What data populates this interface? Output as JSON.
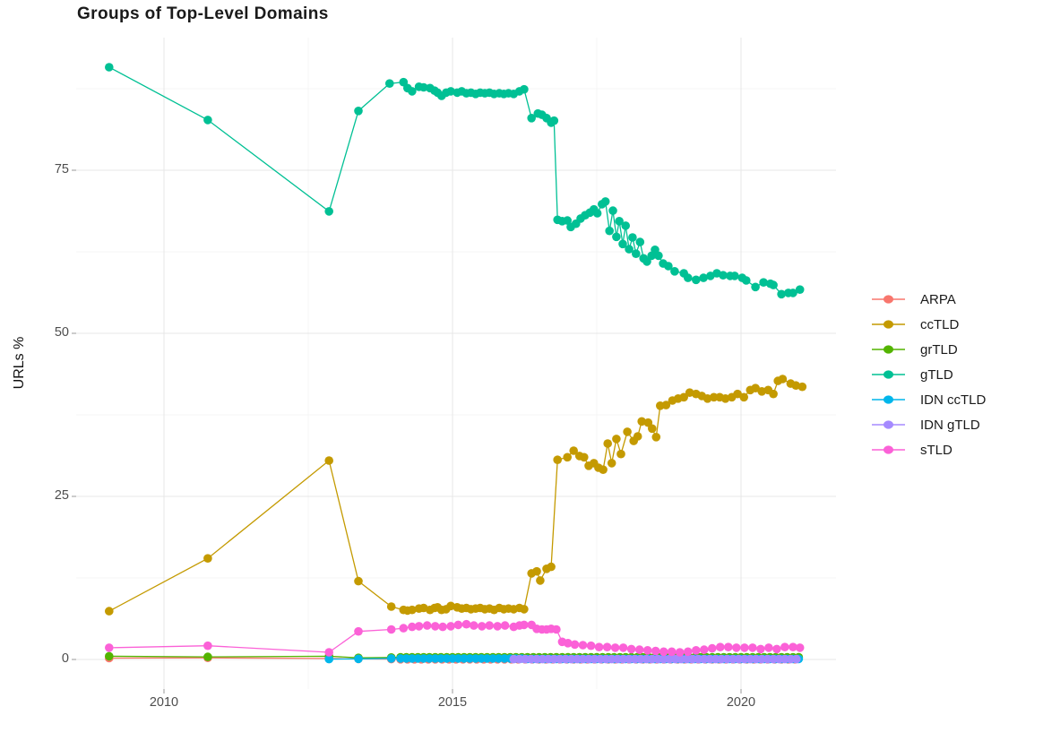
{
  "title": "Groups of Top-Level Domains",
  "axes": {
    "y_label": "URLs %",
    "x_ticks": [
      2010,
      2015,
      2020
    ],
    "y_ticks": [
      0,
      25,
      50,
      75
    ]
  },
  "chart_data": {
    "type": "line",
    "title": "Groups of Top-Level Domains",
    "xlabel": "",
    "ylabel": "URLs %",
    "xlim": [
      2008.5,
      2021.65
    ],
    "ylim": [
      -4.5,
      95.5
    ],
    "grid": true,
    "legend_position": "right",
    "x_major": [
      2010,
      2015,
      2020
    ],
    "x_minor": [
      2012.5,
      2017.5
    ],
    "y_major": [
      0,
      25,
      50,
      75
    ],
    "y_minor": [
      12.5,
      37.5,
      62.5,
      87.5
    ],
    "series": [
      {
        "name": "ARPA",
        "color": "#F8766D",
        "points": [
          [
            2009.05,
            0.2
          ],
          [
            2010.76,
            0.25
          ],
          [
            2012.86,
            0.15
          ],
          [
            2013.37,
            0.08
          ],
          [
            2013.94,
            0.05
          ]
        ],
        "runs": [
          {
            "from": 2014.1,
            "to": 2021.05,
            "step": 0.12,
            "value": 0.03
          }
        ]
      },
      {
        "name": "ccTLD",
        "color": "#C49A00",
        "points": [
          [
            2009.05,
            7.4
          ],
          [
            2010.76,
            15.5
          ],
          [
            2012.86,
            30.5
          ],
          [
            2013.37,
            12.0
          ],
          [
            2013.94,
            8.1
          ],
          [
            2014.15,
            7.6
          ],
          [
            2014.22,
            7.5
          ],
          [
            2014.3,
            7.6
          ],
          [
            2014.42,
            7.8
          ],
          [
            2014.5,
            7.9
          ],
          [
            2014.61,
            7.6
          ],
          [
            2014.69,
            7.9
          ],
          [
            2014.74,
            8.0
          ],
          [
            2014.81,
            7.6
          ],
          [
            2014.89,
            7.7
          ],
          [
            2014.97,
            8.2
          ],
          [
            2015.08,
            8.0
          ],
          [
            2015.16,
            7.8
          ],
          [
            2015.24,
            7.9
          ],
          [
            2015.32,
            7.7
          ],
          [
            2015.4,
            7.8
          ],
          [
            2015.48,
            7.9
          ],
          [
            2015.56,
            7.7
          ],
          [
            2015.64,
            7.8
          ],
          [
            2015.72,
            7.6
          ],
          [
            2015.81,
            7.9
          ],
          [
            2015.89,
            7.7
          ],
          [
            2015.97,
            7.8
          ],
          [
            2016.06,
            7.7
          ],
          [
            2016.16,
            7.9
          ],
          [
            2016.24,
            7.7
          ],
          [
            2016.37,
            13.2
          ],
          [
            2016.46,
            13.5
          ],
          [
            2016.52,
            12.1
          ],
          [
            2016.63,
            13.9
          ],
          [
            2016.71,
            14.2
          ],
          [
            2016.82,
            30.6
          ],
          [
            2016.99,
            31.0
          ],
          [
            2017.1,
            32.0
          ],
          [
            2017.2,
            31.2
          ],
          [
            2017.28,
            31.0
          ],
          [
            2017.36,
            29.7
          ],
          [
            2017.45,
            30.1
          ],
          [
            2017.53,
            29.4
          ],
          [
            2017.61,
            29.1
          ],
          [
            2017.69,
            33.1
          ],
          [
            2017.76,
            30.1
          ],
          [
            2017.84,
            33.8
          ],
          [
            2017.92,
            31.5
          ],
          [
            2018.03,
            34.9
          ],
          [
            2018.14,
            33.5
          ],
          [
            2018.21,
            34.2
          ],
          [
            2018.28,
            36.5
          ],
          [
            2018.39,
            36.3
          ],
          [
            2018.46,
            35.4
          ],
          [
            2018.53,
            34.1
          ],
          [
            2018.6,
            38.9
          ],
          [
            2018.7,
            39.0
          ],
          [
            2018.81,
            39.7
          ],
          [
            2018.91,
            40.0
          ],
          [
            2019.01,
            40.2
          ],
          [
            2019.11,
            40.9
          ],
          [
            2019.22,
            40.7
          ],
          [
            2019.32,
            40.4
          ],
          [
            2019.42,
            40.0
          ],
          [
            2019.53,
            40.2
          ],
          [
            2019.63,
            40.2
          ],
          [
            2019.73,
            40.0
          ],
          [
            2019.84,
            40.2
          ],
          [
            2019.94,
            40.7
          ],
          [
            2020.05,
            40.2
          ],
          [
            2020.16,
            41.3
          ],
          [
            2020.25,
            41.6
          ],
          [
            2020.36,
            41.1
          ],
          [
            2020.47,
            41.3
          ],
          [
            2020.56,
            40.7
          ],
          [
            2020.64,
            42.7
          ],
          [
            2020.72,
            43.0
          ],
          [
            2020.86,
            42.3
          ],
          [
            2020.95,
            42.0
          ],
          [
            2021.06,
            41.8
          ]
        ],
        "runs": []
      },
      {
        "name": "grTLD",
        "color": "#53B400",
        "points": [
          [
            2009.05,
            0.5
          ],
          [
            2010.76,
            0.4
          ],
          [
            2012.86,
            0.5
          ],
          [
            2013.37,
            0.25
          ],
          [
            2013.94,
            0.3
          ]
        ],
        "runs": [
          {
            "from": 2014.1,
            "to": 2021.05,
            "step": 0.1,
            "value": 0.35
          }
        ]
      },
      {
        "name": "gTLD",
        "color": "#00C094",
        "points": [
          [
            2009.05,
            90.8
          ],
          [
            2010.76,
            82.7
          ],
          [
            2012.86,
            68.7
          ],
          [
            2013.37,
            84.1
          ],
          [
            2013.91,
            88.3
          ],
          [
            2014.15,
            88.5
          ],
          [
            2014.22,
            87.6
          ],
          [
            2014.3,
            87.1
          ],
          [
            2014.42,
            87.8
          ],
          [
            2014.5,
            87.7
          ],
          [
            2014.61,
            87.6
          ],
          [
            2014.69,
            87.2
          ],
          [
            2014.74,
            86.9
          ],
          [
            2014.81,
            86.4
          ],
          [
            2014.89,
            86.9
          ],
          [
            2014.97,
            87.1
          ],
          [
            2015.08,
            86.9
          ],
          [
            2015.16,
            87.1
          ],
          [
            2015.24,
            86.8
          ],
          [
            2015.32,
            86.9
          ],
          [
            2015.4,
            86.7
          ],
          [
            2015.48,
            86.9
          ],
          [
            2015.56,
            86.8
          ],
          [
            2015.64,
            86.9
          ],
          [
            2015.72,
            86.7
          ],
          [
            2015.81,
            86.8
          ],
          [
            2015.89,
            86.7
          ],
          [
            2015.97,
            86.8
          ],
          [
            2016.06,
            86.7
          ],
          [
            2016.16,
            87.1
          ],
          [
            2016.24,
            87.4
          ],
          [
            2016.37,
            83.0
          ],
          [
            2016.48,
            83.7
          ],
          [
            2016.55,
            83.5
          ],
          [
            2016.63,
            83.0
          ],
          [
            2016.71,
            82.3
          ],
          [
            2016.76,
            82.6
          ],
          [
            2016.82,
            67.4
          ],
          [
            2016.9,
            67.2
          ],
          [
            2016.99,
            67.3
          ],
          [
            2017.05,
            66.3
          ],
          [
            2017.14,
            66.8
          ],
          [
            2017.22,
            67.6
          ],
          [
            2017.3,
            68.1
          ],
          [
            2017.38,
            68.5
          ],
          [
            2017.45,
            69.0
          ],
          [
            2017.51,
            68.4
          ],
          [
            2017.59,
            69.8
          ],
          [
            2017.65,
            70.2
          ],
          [
            2017.72,
            65.7
          ],
          [
            2017.78,
            68.8
          ],
          [
            2017.84,
            64.8
          ],
          [
            2017.89,
            67.2
          ],
          [
            2017.95,
            63.7
          ],
          [
            2018.0,
            66.5
          ],
          [
            2018.06,
            62.9
          ],
          [
            2018.12,
            64.7
          ],
          [
            2018.18,
            62.2
          ],
          [
            2018.25,
            64.0
          ],
          [
            2018.31,
            61.5
          ],
          [
            2018.37,
            61.0
          ],
          [
            2018.45,
            61.9
          ],
          [
            2018.51,
            62.8
          ],
          [
            2018.57,
            61.9
          ],
          [
            2018.65,
            60.7
          ],
          [
            2018.74,
            60.3
          ],
          [
            2018.85,
            59.5
          ],
          [
            2019.01,
            59.2
          ],
          [
            2019.08,
            58.5
          ],
          [
            2019.22,
            58.2
          ],
          [
            2019.35,
            58.5
          ],
          [
            2019.47,
            58.8
          ],
          [
            2019.58,
            59.2
          ],
          [
            2019.69,
            58.9
          ],
          [
            2019.81,
            58.8
          ],
          [
            2019.89,
            58.8
          ],
          [
            2020.02,
            58.5
          ],
          [
            2020.09,
            58.1
          ],
          [
            2020.25,
            57.1
          ],
          [
            2020.39,
            57.8
          ],
          [
            2020.51,
            57.6
          ],
          [
            2020.56,
            57.4
          ],
          [
            2020.7,
            56.0
          ],
          [
            2020.82,
            56.2
          ],
          [
            2020.9,
            56.2
          ],
          [
            2021.02,
            56.7
          ]
        ],
        "runs": []
      },
      {
        "name": "IDN ccTLD",
        "color": "#00B6EB",
        "points": [
          [
            2012.86,
            0.05
          ],
          [
            2013.37,
            0.1
          ],
          [
            2013.94,
            0.15
          ]
        ],
        "runs": [
          {
            "from": 2014.1,
            "to": 2016.2,
            "step": 0.1,
            "value": 0.15
          },
          {
            "from": 2016.3,
            "to": 2021.05,
            "step": 0.1,
            "value": 0.08
          }
        ]
      },
      {
        "name": "IDN gTLD",
        "color": "#A58AFF",
        "points": [],
        "runs": [
          {
            "from": 2016.06,
            "to": 2021.05,
            "step": 0.1,
            "value": 0.06
          }
        ]
      },
      {
        "name": "sTLD",
        "color": "#FB61D7",
        "points": [
          [
            2009.05,
            1.8
          ],
          [
            2010.76,
            2.1
          ],
          [
            2012.86,
            1.1
          ],
          [
            2013.37,
            4.3
          ],
          [
            2013.94,
            4.6
          ],
          [
            2014.15,
            4.8
          ],
          [
            2014.3,
            5.0
          ],
          [
            2014.42,
            5.1
          ],
          [
            2014.56,
            5.2
          ],
          [
            2014.7,
            5.1
          ],
          [
            2014.83,
            5.0
          ],
          [
            2014.97,
            5.1
          ],
          [
            2015.1,
            5.3
          ],
          [
            2015.24,
            5.4
          ],
          [
            2015.37,
            5.2
          ],
          [
            2015.51,
            5.1
          ],
          [
            2015.64,
            5.2
          ],
          [
            2015.78,
            5.1
          ],
          [
            2015.91,
            5.2
          ],
          [
            2016.06,
            5.0
          ],
          [
            2016.16,
            5.2
          ],
          [
            2016.24,
            5.3
          ],
          [
            2016.37,
            5.3
          ],
          [
            2016.46,
            4.7
          ],
          [
            2016.55,
            4.6
          ],
          [
            2016.63,
            4.6
          ],
          [
            2016.71,
            4.7
          ],
          [
            2016.8,
            4.6
          ],
          [
            2016.9,
            2.7
          ],
          [
            2017.0,
            2.5
          ],
          [
            2017.12,
            2.3
          ],
          [
            2017.26,
            2.2
          ],
          [
            2017.4,
            2.1
          ],
          [
            2017.54,
            1.9
          ],
          [
            2017.68,
            1.9
          ],
          [
            2017.82,
            1.8
          ],
          [
            2017.96,
            1.8
          ],
          [
            2018.1,
            1.6
          ],
          [
            2018.24,
            1.5
          ],
          [
            2018.38,
            1.4
          ],
          [
            2018.52,
            1.3
          ],
          [
            2018.66,
            1.2
          ],
          [
            2018.8,
            1.2
          ],
          [
            2018.94,
            1.1
          ],
          [
            2019.08,
            1.2
          ],
          [
            2019.22,
            1.4
          ],
          [
            2019.36,
            1.5
          ],
          [
            2019.5,
            1.7
          ],
          [
            2019.64,
            1.9
          ],
          [
            2019.78,
            1.9
          ],
          [
            2019.92,
            1.8
          ],
          [
            2020.06,
            1.8
          ],
          [
            2020.2,
            1.8
          ],
          [
            2020.34,
            1.6
          ],
          [
            2020.48,
            1.8
          ],
          [
            2020.62,
            1.6
          ],
          [
            2020.76,
            1.9
          ],
          [
            2020.9,
            1.9
          ],
          [
            2021.02,
            1.8
          ]
        ],
        "runs": []
      }
    ]
  }
}
